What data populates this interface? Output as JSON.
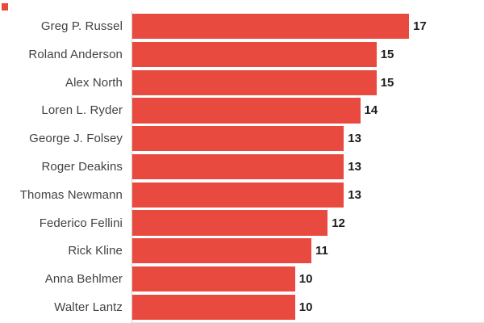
{
  "chart_data": {
    "type": "bar",
    "orientation": "horizontal",
    "title": "",
    "xlabel": "",
    "ylabel": "",
    "categories": [
      "Greg P. Russel",
      "Roland Anderson",
      "Alex North",
      "Loren L. Ryder",
      "George J. Folsey",
      "Roger Deakins",
      "Thomas Newmann",
      "Federico Fellini",
      "Rick Kline",
      "Anna Behlmer",
      "Walter Lantz"
    ],
    "values": [
      17,
      15,
      15,
      14,
      13,
      13,
      13,
      12,
      11,
      10,
      10
    ],
    "xlim": [
      0,
      17
    ],
    "grid": false,
    "legend": false,
    "value_labels_position": "end-of-bar",
    "bar_color": "#e94a3f",
    "category_label_color": "#424242",
    "value_label_color": "#1d1d1d",
    "axis_line_color": "#cccccc",
    "baseline_color": "#e6e6e6"
  },
  "decorations": {
    "corner_marker_color": "#e94a3f"
  }
}
